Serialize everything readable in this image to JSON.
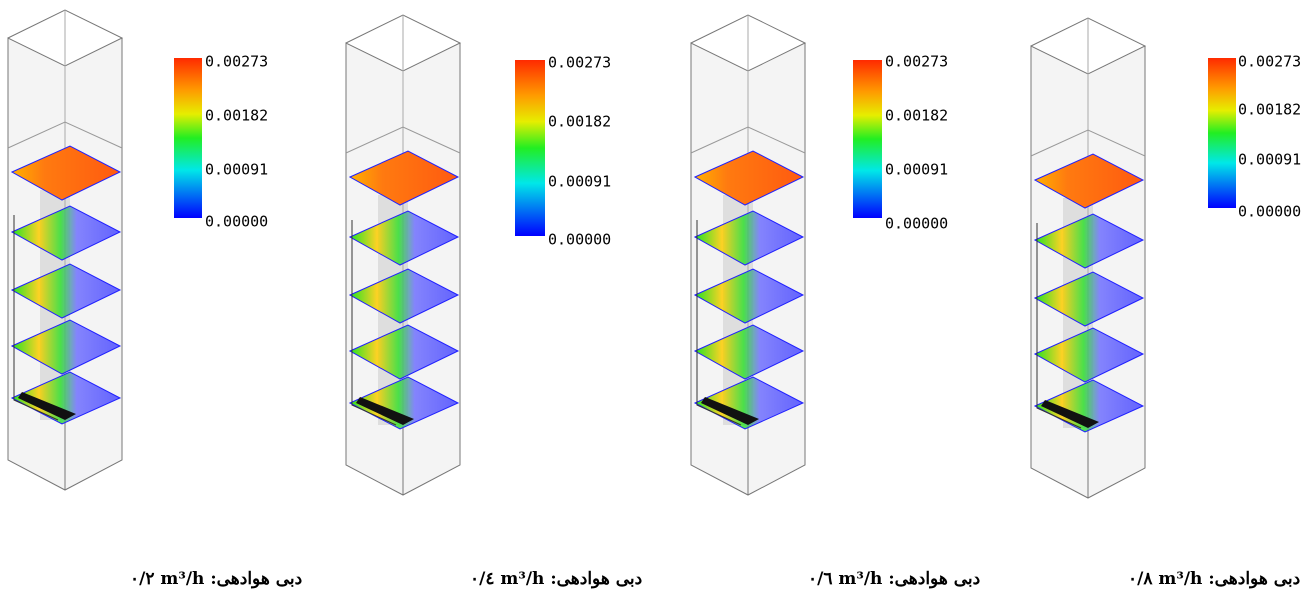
{
  "panels": [
    {
      "colorbar": {
        "ticks": [
          "0.00273",
          "0.00182",
          "0.00091",
          "0.00000"
        ]
      },
      "caption": {
        "label": "دبی هوادهی:",
        "unit": "m³/h",
        "value": "۰/۲"
      }
    },
    {
      "colorbar": {
        "ticks": [
          "0.00273",
          "0.00182",
          "0.00091",
          "0.00000"
        ]
      },
      "caption": {
        "label": "دبی هوادهی:",
        "unit": "m³/h",
        "value": "۰/٤"
      }
    },
    {
      "colorbar": {
        "ticks": [
          "0.00273",
          "0.00182",
          "0.00091",
          "0.00000"
        ]
      },
      "caption": {
        "label": "دبی هوادهی:",
        "unit": "m³/h",
        "value": "۰/٦"
      }
    },
    {
      "colorbar": {
        "ticks": [
          "0.00273",
          "0.00182",
          "0.00091",
          "0.00000"
        ]
      },
      "caption": {
        "label": "دبی هوادهی:",
        "unit": "m³/h",
        "value": "۰/۸"
      }
    }
  ]
}
